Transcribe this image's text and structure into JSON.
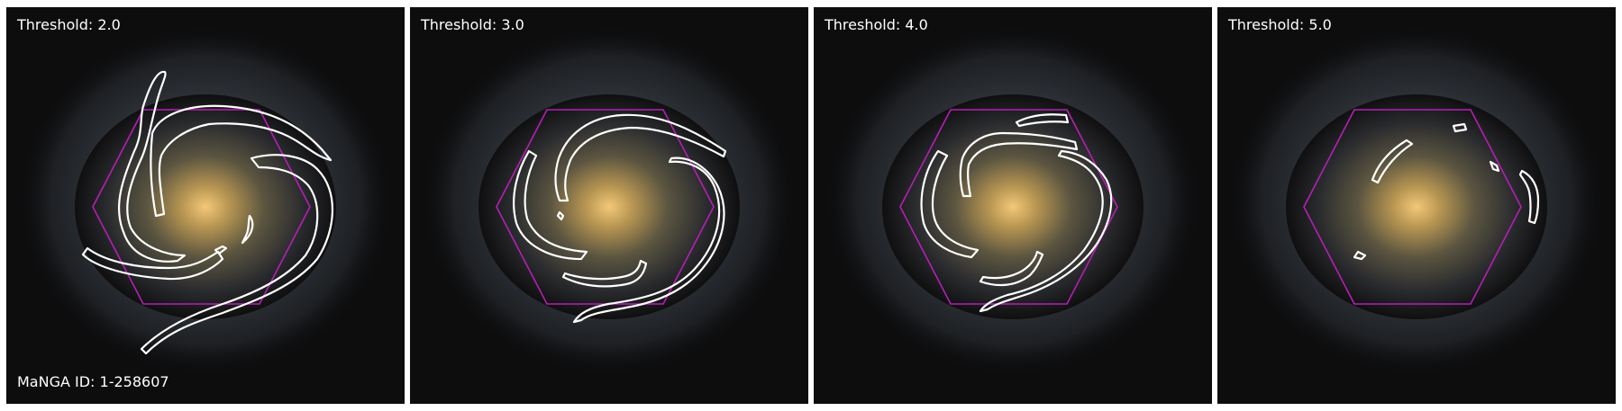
{
  "panels": [
    {
      "label": "Threshold: 2.0"
    },
    {
      "label": "Threshold: 3.0"
    },
    {
      "label": "Threshold: 4.0"
    },
    {
      "label": "Threshold: 5.0"
    }
  ],
  "galaxy_id": "MaNGA ID: 1-258607",
  "colors": {
    "contour": "#ffffff",
    "hexagon": "#b51fb5",
    "label": "#ffffff"
  }
}
